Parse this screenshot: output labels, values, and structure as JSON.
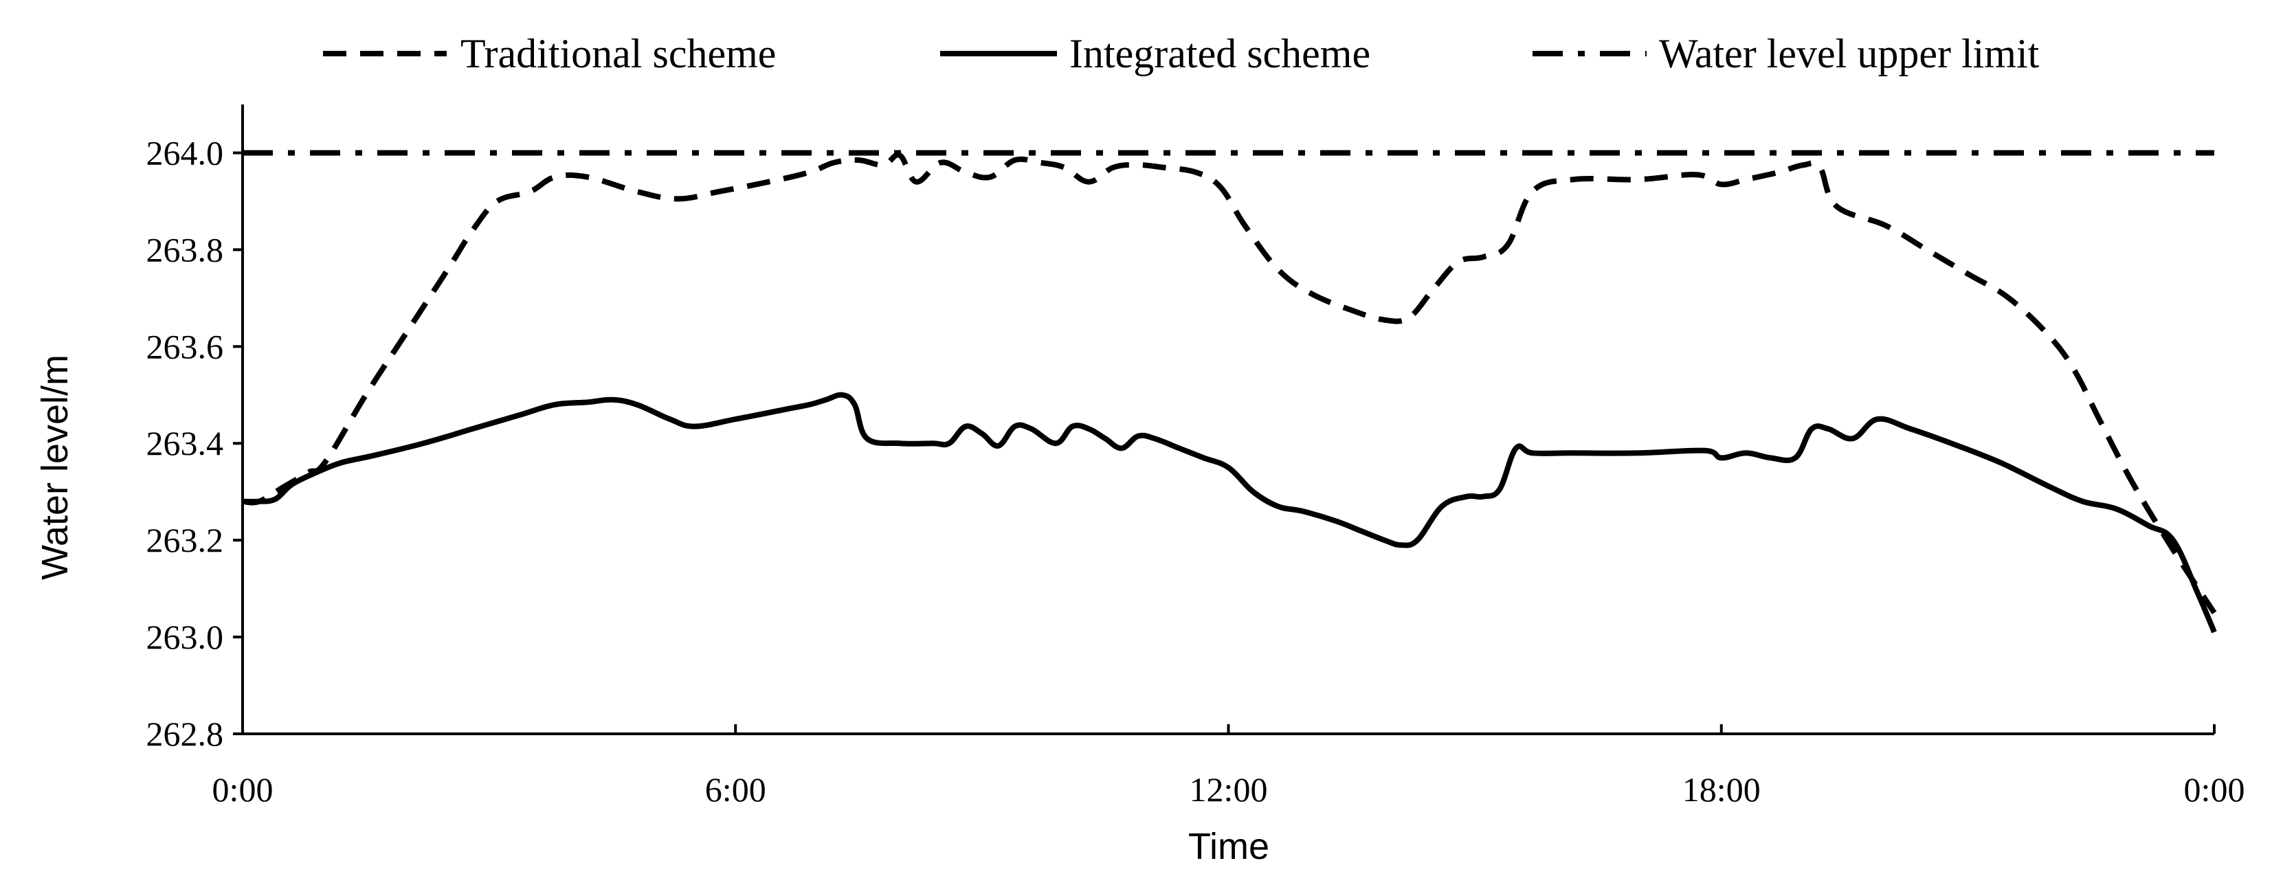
{
  "chart_data": {
    "type": "line",
    "title": "",
    "xlabel": "Time",
    "ylabel": "Water level/m",
    "xlim": [
      0,
      24
    ],
    "ylim": [
      262.8,
      264.1
    ],
    "xticks": [
      0,
      6,
      12,
      18,
      24
    ],
    "xtick_labels": [
      "0:00",
      "6:00",
      "12:00",
      "18:00",
      "0:00"
    ],
    "yticks": [
      262.8,
      263.0,
      263.2,
      263.4,
      263.6,
      263.8,
      264.0
    ],
    "ytick_labels": [
      "262.8",
      "263.0",
      "263.2",
      "263.4",
      "263.6",
      "263.8",
      "264.0"
    ],
    "grid": false,
    "legend_position": "top",
    "series": [
      {
        "name": "Traditional scheme",
        "style": "dashed",
        "color": "#000000",
        "x": [
          0,
          0.2,
          0.5,
          0.8,
          1.0,
          1.5,
          2.0,
          2.5,
          2.8,
          3.1,
          3.5,
          3.8,
          4.2,
          4.8,
          5.3,
          5.8,
          6.4,
          6.9,
          7.2,
          7.5,
          7.8,
          8.0,
          8.2,
          8.5,
          8.8,
          9.1,
          9.4,
          9.7,
          10.0,
          10.3,
          10.6,
          10.9,
          11.2,
          11.6,
          11.9,
          12.2,
          12.6,
          13.0,
          13.5,
          13.9,
          14.2,
          14.5,
          14.8,
          15.1,
          15.4,
          15.7,
          16.2,
          17.0,
          17.7,
          18.0,
          18.3,
          18.7,
          19.0,
          19.2,
          19.4,
          20.0,
          20.5,
          21.0,
          21.5,
          22.0,
          22.3,
          22.6,
          23.0,
          23.5,
          24.0
        ],
        "values": [
          263.28,
          263.28,
          263.31,
          263.34,
          263.36,
          263.5,
          263.63,
          263.76,
          263.84,
          263.9,
          263.92,
          263.95,
          263.95,
          263.92,
          263.905,
          263.92,
          263.94,
          263.96,
          263.98,
          263.985,
          263.975,
          263.995,
          263.94,
          263.98,
          263.96,
          263.95,
          263.985,
          263.98,
          263.97,
          263.94,
          263.97,
          263.975,
          263.97,
          263.96,
          263.93,
          263.85,
          263.76,
          263.71,
          263.675,
          263.655,
          263.66,
          263.72,
          263.775,
          263.785,
          263.81,
          263.92,
          263.945,
          263.945,
          263.955,
          263.935,
          263.945,
          263.96,
          263.975,
          263.97,
          263.89,
          263.85,
          263.8,
          263.75,
          263.7,
          263.62,
          263.55,
          263.45,
          263.32,
          263.18,
          263.05
        ]
      },
      {
        "name": "Integrated scheme",
        "style": "solid",
        "color": "#000000",
        "x": [
          0,
          0.2,
          0.4,
          0.6,
          0.9,
          1.2,
          1.6,
          2.2,
          2.8,
          3.4,
          3.8,
          4.2,
          4.5,
          4.8,
          5.2,
          5.5,
          6.0,
          6.6,
          6.9,
          7.1,
          7.3,
          7.45,
          7.6,
          8.0,
          8.4,
          8.6,
          8.8,
          9.0,
          9.2,
          9.4,
          9.6,
          9.9,
          10.1,
          10.3,
          10.5,
          10.7,
          10.9,
          11.1,
          11.4,
          11.7,
          12.0,
          12.3,
          12.6,
          12.9,
          13.3,
          13.6,
          13.9,
          14.1,
          14.3,
          14.6,
          14.9,
          15.1,
          15.3,
          15.5,
          15.7,
          16.2,
          17.0,
          17.8,
          18.0,
          18.3,
          18.6,
          18.9,
          19.1,
          19.3,
          19.6,
          19.9,
          20.3,
          20.8,
          21.4,
          22.0,
          22.4,
          22.8,
          23.2,
          23.5,
          23.8,
          24.0
        ],
        "values": [
          263.28,
          263.28,
          263.285,
          263.315,
          263.34,
          263.36,
          263.375,
          263.4,
          263.43,
          263.46,
          263.48,
          263.485,
          263.49,
          263.48,
          263.45,
          263.435,
          263.45,
          263.47,
          263.48,
          263.49,
          263.5,
          263.48,
          263.41,
          263.4,
          263.4,
          263.4,
          263.435,
          263.42,
          263.395,
          263.435,
          263.43,
          263.4,
          263.435,
          263.43,
          263.41,
          263.39,
          263.415,
          263.41,
          263.39,
          263.37,
          263.35,
          263.3,
          263.27,
          263.26,
          263.24,
          263.22,
          263.2,
          263.19,
          263.2,
          263.27,
          263.29,
          263.29,
          263.305,
          263.39,
          263.38,
          263.38,
          263.38,
          263.385,
          263.37,
          263.38,
          263.37,
          263.37,
          263.43,
          263.43,
          263.41,
          263.45,
          263.43,
          263.4,
          263.36,
          263.31,
          263.28,
          263.265,
          263.23,
          263.2,
          263.09,
          263.01
        ]
      },
      {
        "name": "Water level upper limit",
        "style": "dashdot",
        "color": "#000000",
        "x": [
          0,
          24
        ],
        "values": [
          264.0,
          264.0
        ]
      }
    ]
  }
}
